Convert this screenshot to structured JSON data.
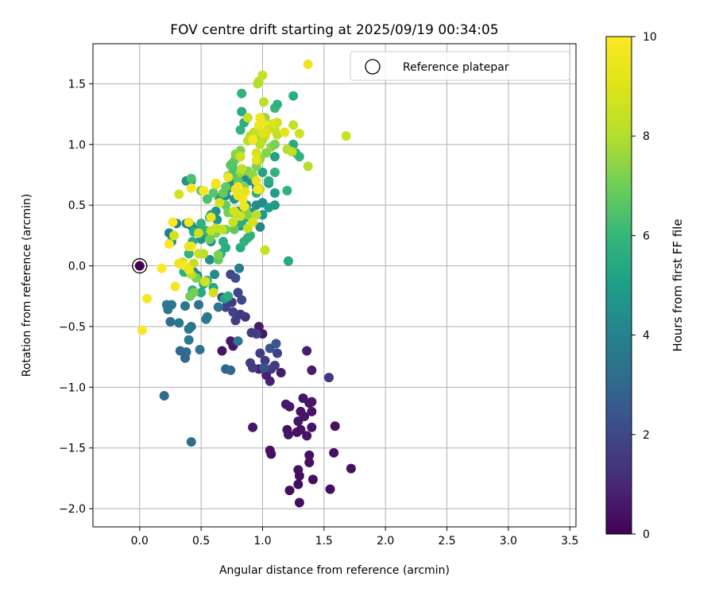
{
  "chart_data": {
    "type": "scatter",
    "title": "FOV centre drift starting at 2025/09/19 00:34:05",
    "xlabel": "Angular distance from reference (arcmin)",
    "ylabel": "Rotation from reference (arcmin)",
    "xlim": [
      -0.38,
      3.55
    ],
    "ylim": [
      -2.15,
      1.83
    ],
    "x_ticks": [
      0.0,
      0.5,
      1.0,
      1.5,
      2.0,
      2.5,
      3.0,
      3.5
    ],
    "x_tick_labels": [
      "0.0",
      "0.5",
      "1.0",
      "1.5",
      "2.0",
      "2.5",
      "3.0",
      "3.5"
    ],
    "y_ticks": [
      -2.0,
      -1.5,
      -1.0,
      -0.5,
      0.0,
      0.5,
      1.0,
      1.5
    ],
    "y_tick_labels": [
      "−2.0",
      "−1.5",
      "−1.0",
      "−0.5",
      "0.0",
      "0.5",
      "1.0",
      "1.5"
    ],
    "grid": true,
    "legend": {
      "position": "top-right",
      "entries": [
        "Reference platepar"
      ]
    },
    "reference_point": {
      "x": 0.0,
      "y": 0.0,
      "label": "Reference platepar"
    },
    "colorbar": {
      "label": "Hours from first FF file",
      "range": [
        0,
        10
      ],
      "ticks": [
        0,
        2,
        4,
        6,
        8,
        10
      ],
      "tick_labels": [
        "0",
        "2",
        "4",
        "6",
        "8",
        "10"
      ],
      "colormap": "viridis"
    },
    "points_note": "columns: x (arcmin), y (arcmin), hours",
    "points": [
      [
        1.3,
        -1.95,
        0.3
      ],
      [
        1.29,
        -1.8,
        0.3
      ],
      [
        1.3,
        -1.73,
        0.3
      ],
      [
        1.29,
        -1.68,
        0.4
      ],
      [
        1.22,
        -1.85,
        0.3
      ],
      [
        1.41,
        -1.76,
        0.3
      ],
      [
        1.55,
        -1.84,
        0.3
      ],
      [
        1.72,
        -1.67,
        0.4
      ],
      [
        1.58,
        -1.54,
        0.4
      ],
      [
        1.38,
        -1.62,
        0.4
      ],
      [
        1.38,
        -1.56,
        0.4
      ],
      [
        1.06,
        -1.52,
        0.4
      ],
      [
        1.07,
        -1.55,
        0.4
      ],
      [
        1.2,
        -1.35,
        0.4
      ],
      [
        1.21,
        -1.39,
        0.5
      ],
      [
        1.28,
        -1.37,
        0.4
      ],
      [
        1.31,
        -1.35,
        0.4
      ],
      [
        1.36,
        -1.4,
        0.5
      ],
      [
        1.4,
        -1.33,
        0.5
      ],
      [
        1.59,
        -1.32,
        0.4
      ],
      [
        1.29,
        -1.28,
        0.5
      ],
      [
        1.34,
        -1.24,
        0.5
      ],
      [
        1.4,
        -1.2,
        0.5
      ],
      [
        1.31,
        -1.2,
        0.5
      ],
      [
        1.33,
        -1.09,
        0.5
      ],
      [
        1.19,
        -1.14,
        0.6
      ],
      [
        1.22,
        -1.16,
        0.6
      ],
      [
        1.4,
        -1.12,
        0.6
      ],
      [
        1.38,
        -1.13,
        0.6
      ],
      [
        0.92,
        -1.33,
        0.6
      ],
      [
        1.4,
        -0.86,
        0.7
      ],
      [
        1.36,
        -0.7,
        0.7
      ],
      [
        1.15,
        -0.88,
        0.7
      ],
      [
        1.06,
        -0.95,
        0.8
      ],
      [
        1.03,
        -0.9,
        0.8
      ],
      [
        0.97,
        -0.85,
        0.8
      ],
      [
        1.0,
        -0.56,
        0.6
      ],
      [
        0.97,
        -0.5,
        0.7
      ],
      [
        0.76,
        -0.66,
        0.5
      ],
      [
        0.74,
        -0.62,
        0.6
      ],
      [
        0.67,
        -0.7,
        0.5
      ],
      [
        1.54,
        -0.92,
        1.5
      ],
      [
        1.1,
        -0.82,
        1.5
      ],
      [
        1.07,
        -0.85,
        1.6
      ],
      [
        1.12,
        -0.72,
        1.8
      ],
      [
        1.02,
        -0.78,
        1.7
      ],
      [
        0.98,
        -0.72,
        1.7
      ],
      [
        0.92,
        -0.84,
        1.6
      ],
      [
        0.9,
        -0.8,
        1.6
      ],
      [
        0.95,
        -0.56,
        1.8
      ],
      [
        0.91,
        -0.55,
        1.6
      ],
      [
        0.86,
        -0.42,
        1.4
      ],
      [
        0.82,
        -0.4,
        1.5
      ],
      [
        0.78,
        -0.45,
        1.7
      ],
      [
        0.76,
        -0.38,
        1.8
      ],
      [
        0.75,
        -0.3,
        1.6
      ],
      [
        0.7,
        -0.34,
        1.8
      ],
      [
        0.67,
        -0.26,
        1.9
      ],
      [
        0.8,
        -0.22,
        1.9
      ],
      [
        0.83,
        -0.28,
        2.0
      ],
      [
        0.74,
        -0.07,
        2.0
      ],
      [
        0.78,
        -0.1,
        2.2
      ],
      [
        1.06,
        -0.68,
        2.4
      ],
      [
        1.11,
        -0.64,
        2.4
      ],
      [
        1.01,
        -0.84,
        2.3
      ],
      [
        0.2,
        -1.07,
        3.0
      ],
      [
        0.42,
        -1.45,
        3.2
      ],
      [
        0.37,
        -0.76,
        3.0
      ],
      [
        0.38,
        -0.71,
        3.2
      ],
      [
        0.33,
        -0.7,
        3.0
      ],
      [
        0.49,
        -0.69,
        3.4
      ],
      [
        0.4,
        -0.61,
        3.6
      ],
      [
        0.42,
        -0.5,
        3.3
      ],
      [
        0.4,
        -0.52,
        3.6
      ],
      [
        0.32,
        -0.47,
        3.6
      ],
      [
        0.25,
        -0.46,
        3.2
      ],
      [
        0.7,
        -0.85,
        2.9
      ],
      [
        0.74,
        -0.86,
        3.0
      ],
      [
        0.8,
        -0.62,
        3.5
      ],
      [
        0.54,
        -0.44,
        3.8
      ],
      [
        0.55,
        -0.42,
        3.6
      ],
      [
        0.64,
        -0.34,
        3.5
      ],
      [
        0.48,
        -0.32,
        3.4
      ],
      [
        0.37,
        -0.33,
        3.6
      ],
      [
        0.22,
        -0.32,
        3.8
      ],
      [
        0.23,
        -0.36,
        3.5
      ],
      [
        0.26,
        -0.32,
        3.6
      ],
      [
        0.37,
        -0.05,
        4.0
      ],
      [
        0.44,
        -0.05,
        4.2
      ],
      [
        0.47,
        -0.08,
        4.4
      ],
      [
        0.57,
        0.05,
        4.5
      ],
      [
        0.61,
        -0.07,
        4.3
      ],
      [
        0.58,
        0.2,
        4.6
      ],
      [
        0.55,
        0.24,
        4.7
      ],
      [
        0.5,
        0.22,
        4.7
      ],
      [
        0.48,
        0.3,
        4.5
      ],
      [
        0.42,
        0.33,
        4.3
      ],
      [
        0.38,
        0.35,
        4.1
      ],
      [
        0.3,
        0.35,
        4.0
      ],
      [
        0.24,
        0.27,
        3.9
      ],
      [
        0.26,
        0.2,
        4.2
      ],
      [
        0.81,
        -0.02,
        3.8
      ],
      [
        0.82,
        0.33,
        4.2
      ],
      [
        0.98,
        0.32,
        4.0
      ],
      [
        1.0,
        0.52,
        4.3
      ],
      [
        0.8,
        0.45,
        4.5
      ],
      [
        0.87,
        0.5,
        4.6
      ],
      [
        0.95,
        0.5,
        4.3
      ],
      [
        0.91,
        0.44,
        4.6
      ],
      [
        0.77,
        0.55,
        4.6
      ],
      [
        0.7,
        0.58,
        4.4
      ],
      [
        0.65,
        0.56,
        4.8
      ],
      [
        0.62,
        0.45,
        4.6
      ],
      [
        0.63,
        0.38,
        4.7
      ],
      [
        0.58,
        0.42,
        5.0
      ],
      [
        0.38,
        0.7,
        4.5
      ],
      [
        0.42,
        0.7,
        4.8
      ],
      [
        0.72,
        0.64,
        4.5
      ],
      [
        0.75,
        0.68,
        4.6
      ],
      [
        0.8,
        0.73,
        4.8
      ],
      [
        0.85,
        0.73,
        4.4
      ],
      [
        0.9,
        0.7,
        4.5
      ],
      [
        0.95,
        0.65,
        4.6
      ],
      [
        1.05,
        0.68,
        4.7
      ],
      [
        1.1,
        0.6,
        5.0
      ],
      [
        1.0,
        0.42,
        4.8
      ],
      [
        1.05,
        0.48,
        5.0
      ],
      [
        1.1,
        0.5,
        4.9
      ],
      [
        0.66,
        0.1,
        5.4
      ],
      [
        0.7,
        0.15,
        5.6
      ],
      [
        0.68,
        0.2,
        5.6
      ],
      [
        0.54,
        0.29,
        5.8
      ],
      [
        0.5,
        0.35,
        5.8
      ],
      [
        0.57,
        0.4,
        5.5
      ],
      [
        0.44,
        0.28,
        5.4
      ],
      [
        0.43,
        0.2,
        5.6
      ],
      [
        0.4,
        0.1,
        5.8
      ],
      [
        0.36,
        -0.05,
        5.7
      ],
      [
        0.43,
        -0.2,
        5.5
      ],
      [
        0.5,
        -0.22,
        5.4
      ],
      [
        0.52,
        -0.15,
        5.5
      ],
      [
        0.55,
        -0.12,
        5.6
      ],
      [
        0.6,
        -0.18,
        5.3
      ],
      [
        0.69,
        -0.27,
        5.2
      ],
      [
        0.72,
        -0.25,
        5.6
      ],
      [
        0.82,
        0.15,
        5.5
      ],
      [
        0.85,
        0.2,
        5.8
      ],
      [
        0.88,
        0.23,
        5.6
      ],
      [
        0.9,
        0.25,
        5.8
      ],
      [
        0.83,
        0.35,
        5.6
      ],
      [
        0.88,
        0.4,
        5.4
      ],
      [
        0.95,
        0.6,
        5.6
      ],
      [
        1.0,
        0.77,
        5.2
      ],
      [
        1.05,
        0.7,
        5.6
      ],
      [
        1.1,
        0.77,
        5.8
      ],
      [
        1.1,
        0.9,
        5.2
      ],
      [
        1.2,
        0.62,
        5.8
      ],
      [
        1.21,
        0.04,
        5.4
      ],
      [
        1.25,
        1.4,
        5.6
      ],
      [
        1.27,
        0.93,
        5.8
      ],
      [
        1.25,
        1.0,
        5.4
      ],
      [
        1.3,
        0.9,
        5.8
      ],
      [
        0.83,
        1.42,
        5.8
      ],
      [
        0.83,
        1.27,
        5.5
      ],
      [
        0.85,
        1.18,
        5.6
      ],
      [
        0.82,
        1.12,
        5.8
      ],
      [
        1.1,
        1.3,
        6.0
      ],
      [
        1.12,
        1.33,
        5.8
      ],
      [
        0.42,
        0.72,
        6.4
      ],
      [
        0.5,
        0.62,
        6.5
      ],
      [
        0.55,
        0.55,
        6.4
      ],
      [
        0.6,
        0.6,
        6.6
      ],
      [
        0.68,
        0.6,
        6.8
      ],
      [
        0.7,
        0.65,
        6.8
      ],
      [
        0.72,
        0.74,
        7.0
      ],
      [
        0.75,
        0.75,
        6.5
      ],
      [
        0.78,
        0.88,
        6.6
      ],
      [
        0.8,
        0.7,
        6.8
      ],
      [
        0.76,
        0.8,
        6.4
      ],
      [
        0.76,
        0.85,
        6.7
      ],
      [
        0.74,
        0.83,
        6.6
      ],
      [
        0.7,
        0.5,
        6.8
      ],
      [
        0.72,
        0.44,
        7.0
      ],
      [
        0.75,
        0.44,
        7.2
      ],
      [
        0.77,
        0.3,
        6.8
      ],
      [
        0.62,
        0.27,
        7.1
      ],
      [
        0.68,
        0.3,
        6.8
      ],
      [
        0.7,
        0.3,
        7.0
      ],
      [
        0.64,
        0.05,
        6.8
      ],
      [
        0.64,
        0.09,
        7.2
      ],
      [
        0.54,
        -0.13,
        7.3
      ],
      [
        0.46,
        -0.1,
        7.2
      ],
      [
        0.44,
        -0.22,
        7.1
      ],
      [
        0.41,
        -0.25,
        7.0
      ],
      [
        0.57,
        0.22,
        7.0
      ],
      [
        0.88,
        0.42,
        7.3
      ],
      [
        0.86,
        0.48,
        7.3
      ],
      [
        0.8,
        0.64,
        7.2
      ],
      [
        0.85,
        0.65,
        7.2
      ],
      [
        0.88,
        0.78,
        7.3
      ],
      [
        0.92,
        0.75,
        7.5
      ],
      [
        0.95,
        0.82,
        7.2
      ],
      [
        0.98,
        0.88,
        7.5
      ],
      [
        1.03,
        0.93,
        7.3
      ],
      [
        1.07,
        0.98,
        7.5
      ],
      [
        1.1,
        1.0,
        7.2
      ],
      [
        0.82,
        0.95,
        7.2
      ],
      [
        0.8,
        0.91,
        7.4
      ],
      [
        0.78,
        0.92,
        7.4
      ],
      [
        0.82,
        0.77,
        7.6
      ],
      [
        0.97,
        1.05,
        7.6
      ],
      [
        1.0,
        1.04,
        7.8
      ],
      [
        1.02,
        1.22,
        7.5
      ],
      [
        0.88,
        1.03,
        8.1
      ],
      [
        0.9,
        1.07,
        8.0
      ],
      [
        0.93,
        1.1,
        8.2
      ],
      [
        0.95,
        1.1,
        8.3
      ],
      [
        0.98,
        1.0,
        8.1
      ],
      [
        1.02,
        1.07,
        8.4
      ],
      [
        1.05,
        1.13,
        8.5
      ],
      [
        1.08,
        1.15,
        8.2
      ],
      [
        1.12,
        1.18,
        8.6
      ],
      [
        1.1,
        1.12,
        8.5
      ],
      [
        1.12,
        1.08,
        8.3
      ],
      [
        1.2,
        0.96,
        8.0
      ],
      [
        1.24,
        0.94,
        8.2
      ],
      [
        1.37,
        0.82,
        8.0
      ],
      [
        1.25,
        1.16,
        8.4
      ],
      [
        1.3,
        1.09,
        8.6
      ],
      [
        0.97,
        1.52,
        8.3
      ],
      [
        1.0,
        1.57,
        8.5
      ],
      [
        1.01,
        1.35,
        8.1
      ],
      [
        0.96,
        1.5,
        8.0
      ],
      [
        0.88,
        1.22,
        8.5
      ],
      [
        1.02,
        0.13,
        8.5
      ],
      [
        0.82,
        0.9,
        8.6
      ],
      [
        0.83,
        0.8,
        8.2
      ],
      [
        0.98,
        0.63,
        8.3
      ],
      [
        0.95,
        0.42,
        8.1
      ],
      [
        0.88,
        0.31,
        8.4
      ],
      [
        0.8,
        0.42,
        8.2
      ],
      [
        0.82,
        0.41,
        8.6
      ],
      [
        0.76,
        0.36,
        8.5
      ],
      [
        0.67,
        0.3,
        8.4
      ],
      [
        0.62,
        0.31,
        8.3
      ],
      [
        0.48,
        0.27,
        8.6
      ],
      [
        0.58,
        0.29,
        8.4
      ],
      [
        0.48,
        0.1,
        8.6
      ],
      [
        0.52,
        0.1,
        8.2
      ],
      [
        0.35,
        0.03,
        8.5
      ],
      [
        0.44,
        0.02,
        8.4
      ],
      [
        0.42,
        -0.07,
        8.3
      ],
      [
        0.53,
        -0.13,
        8.7
      ],
      [
        0.6,
        -0.22,
        8.6
      ],
      [
        0.28,
        0.25,
        8.7
      ],
      [
        0.32,
        0.59,
        8.7
      ],
      [
        0.52,
        0.62,
        8.6
      ],
      [
        0.62,
        0.67,
        8.5
      ],
      [
        0.65,
        0.52,
        8.8
      ],
      [
        0.77,
        0.45,
        8.8
      ],
      [
        0.92,
        0.36,
        8.9
      ],
      [
        1.68,
        1.07,
        8.5
      ],
      [
        0.95,
        0.93,
        8.8
      ],
      [
        1.0,
        1.09,
        8.9
      ],
      [
        1.03,
        1.1,
        9.0
      ],
      [
        1.08,
        1.17,
        9.0
      ],
      [
        1.37,
        1.66,
        9.5
      ],
      [
        1.18,
        1.1,
        9.3
      ],
      [
        1.0,
        1.18,
        9.4
      ],
      [
        0.97,
        1.16,
        9.6
      ],
      [
        0.98,
        1.22,
        9.5
      ],
      [
        0.92,
        1.04,
        9.8
      ],
      [
        0.95,
        0.87,
        9.2
      ],
      [
        0.86,
        0.61,
        9.3
      ],
      [
        0.84,
        0.55,
        9.7
      ],
      [
        0.85,
        0.49,
        9.5
      ],
      [
        0.8,
        0.65,
        9.8
      ],
      [
        0.78,
        0.63,
        9.6
      ],
      [
        0.8,
        0.58,
        9.4
      ],
      [
        0.96,
        0.63,
        9.7
      ],
      [
        0.95,
        0.7,
        9.4
      ],
      [
        0.72,
        0.73,
        9.6
      ],
      [
        0.62,
        0.68,
        9.7
      ],
      [
        0.58,
        0.4,
        9.5
      ],
      [
        0.52,
        0.62,
        9.9
      ],
      [
        0.42,
        0.64,
        9.8
      ],
      [
        0.4,
        0.36,
        9.6
      ],
      [
        0.42,
        0.16,
        9.9
      ],
      [
        0.4,
        0.16,
        9.5
      ],
      [
        0.27,
        0.36,
        9.8
      ],
      [
        0.24,
        0.18,
        9.8
      ],
      [
        0.32,
        0.02,
        9.6
      ],
      [
        0.37,
        0.0,
        9.9
      ],
      [
        0.4,
        -0.03,
        9.5
      ],
      [
        0.18,
        -0.02,
        10.0
      ],
      [
        0.29,
        -0.17,
        9.7
      ],
      [
        0.06,
        -0.27,
        9.9
      ],
      [
        0.02,
        -0.53,
        10.0
      ]
    ]
  }
}
